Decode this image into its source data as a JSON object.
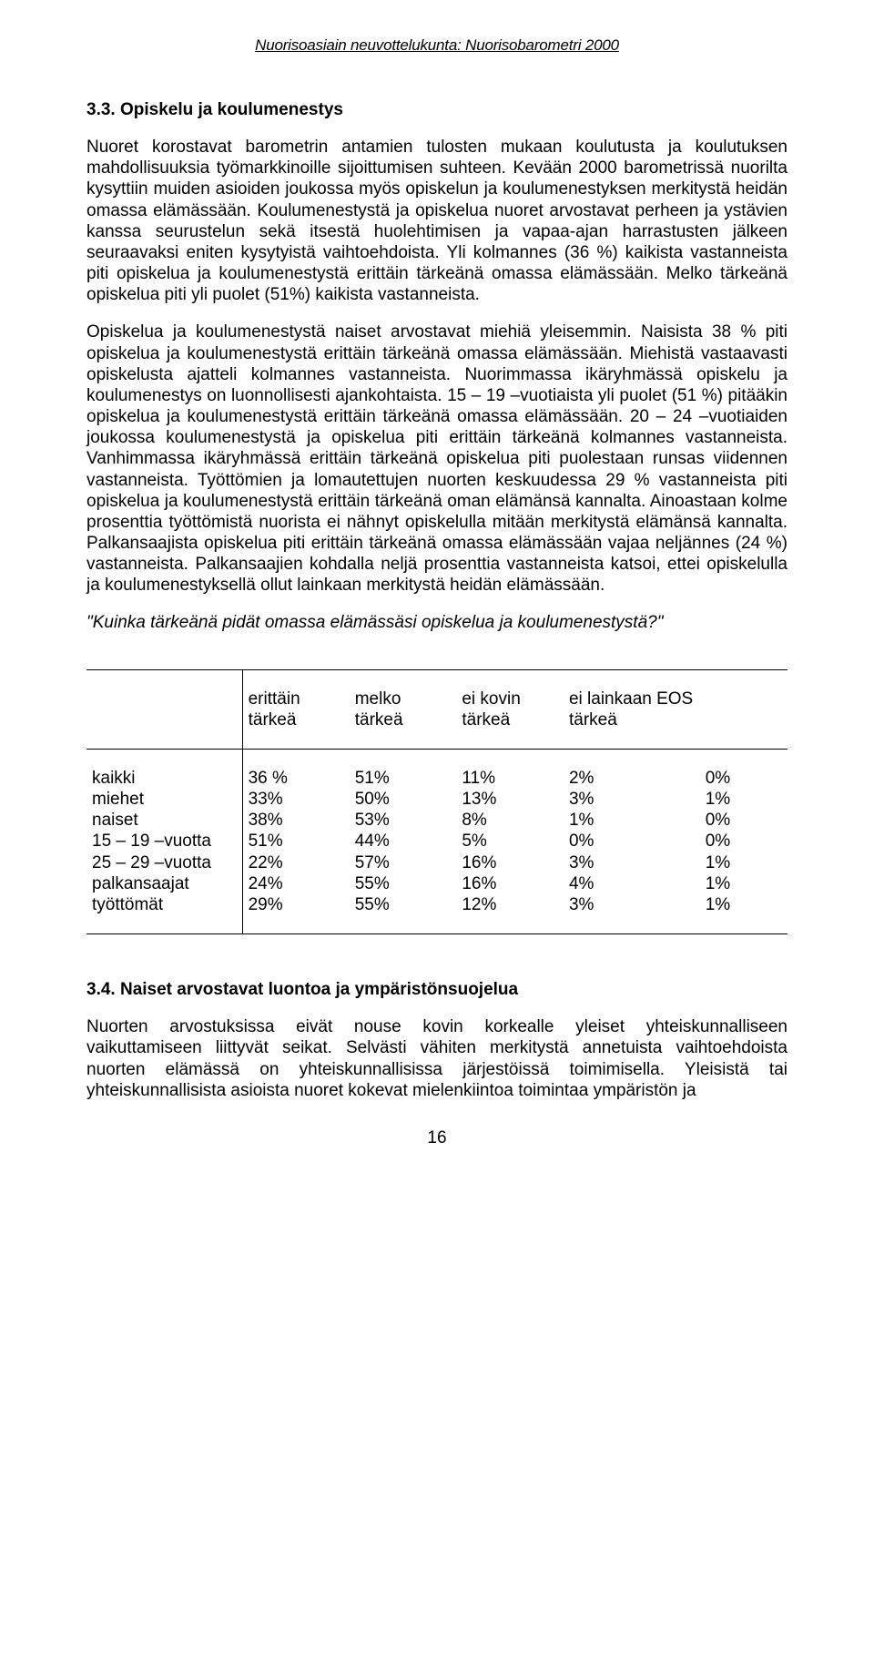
{
  "header": "Nuorisoasiain neuvottelukunta: Nuorisobarometri 2000",
  "section_title": "3.3. Opiskelu ja koulumenestys",
  "para1": "Nuoret korostavat barometrin antamien tulosten mukaan koulutusta ja koulutuksen mahdollisuuksia työmarkkinoille sijoittumisen suhteen. Kevään 2000 barometrissä nuorilta kysyttiin muiden asioiden joukossa myös opiskelun ja koulumenestyksen merkitystä heidän omassa elämässään. Koulumenestystä ja opiskelua nuoret arvostavat perheen ja ystävien kanssa seurustelun sekä itsestä huolehtimisen ja vapaa-ajan harrastusten jälkeen seuraavaksi eniten kysytyistä vaihtoehdoista. Yli kolmannes (36 %) kaikista vastanneista piti opiskelua ja koulumenestystä erittäin tärkeänä omassa elämässään. Melko tärkeänä opiskelua piti yli puolet (51%) kaikista vastanneista.",
  "para2": "Opiskelua ja koulumenestystä naiset arvostavat miehiä yleisemmin. Naisista 38 % piti opiskelua ja koulumenestystä erittäin tärkeänä omassa elämässään. Miehistä vastaavasti opiskelusta ajatteli kolmannes vastanneista. Nuorimmassa ikäryhmässä opiskelu ja koulumenestys on luonnollisesti ajankohtaista. 15 – 19 –vuotiaista yli puolet (51 %) pitääkin opiskelua ja koulumenestystä erittäin tärkeänä omassa elämässään. 20 – 24 –vuotiaiden joukossa koulumenestystä ja opiskelua piti erittäin tärkeänä kolmannes vastanneista. Vanhimmassa ikäryhmässä erittäin tärkeänä opiskelua piti puolestaan runsas viidennen vastanneista. Työttömien ja lomautettujen nuorten keskuudessa 29 % vastanneista piti opiskelua ja koulumenestystä erittäin tärkeänä oman elämänsä kannalta. Ainoastaan kolme prosenttia työttömistä nuorista ei nähnyt opiskelulla mitään merkitystä elämänsä kannalta.  Palkansaajista opiskelua piti erittäin tärkeänä omassa elämässään vajaa neljännes (24 %) vastanneista. Palkansaajien kohdalla neljä prosenttia vastanneista katsoi, ettei opiskelulla ja koulumenestyksellä ollut lainkaan merkitystä heidän elämässään.",
  "quote": "\"Kuinka tärkeänä pidät omassa elämässäsi opiskelua ja koulumenestystä?\"",
  "table": {
    "columns": [
      {
        "line1": "erittäin",
        "line2": "tärkeä"
      },
      {
        "line1": "melko",
        "line2": "tärkeä"
      },
      {
        "line1": "ei kovin",
        "line2": "tärkeä"
      },
      {
        "line1": "ei lainkaan",
        "line2": "tärkeä"
      },
      {
        "line1": "EOS",
        "line2": ""
      }
    ],
    "rows": [
      {
        "label": "kaikki",
        "v": [
          "36 %",
          "51%",
          "11%",
          "2%",
          "0%"
        ]
      },
      {
        "label": "miehet",
        "v": [
          "33%",
          "50%",
          "13%",
          "3%",
          "1%"
        ]
      },
      {
        "label": "naiset",
        "v": [
          "38%",
          "53%",
          "8%",
          "1%",
          "0%"
        ]
      },
      {
        "label": "15 – 19 –vuotta",
        "v": [
          "51%",
          "44%",
          "5%",
          "0%",
          "0%"
        ]
      },
      {
        "label": "25 – 29 –vuotta",
        "v": [
          "22%",
          "57%",
          "16%",
          "3%",
          "1%"
        ]
      },
      {
        "label": "palkansaajat",
        "v": [
          "24%",
          "55%",
          "16%",
          "4%",
          "1%"
        ]
      },
      {
        "label": "työttömät",
        "v": [
          "29%",
          "55%",
          "12%",
          "3%",
          "1%"
        ]
      }
    ]
  },
  "section_title2": "3.4. Naiset arvostavat luontoa ja ympäristönsuojelua",
  "para3": "Nuorten arvostuksissa eivät nouse kovin korkealle yleiset yhteiskunnalliseen vaikuttamiseen liittyvät seikat. Selvästi vähiten merkitystä annetuista vaihtoehdoista nuorten elämässä on yhteiskunnallisissa järjestöissä toimimisella. Yleisistä tai yhteiskunnallisista asioista nuoret kokevat mielenkiintoa toimintaa ympäristön ja",
  "page_number": "16"
}
